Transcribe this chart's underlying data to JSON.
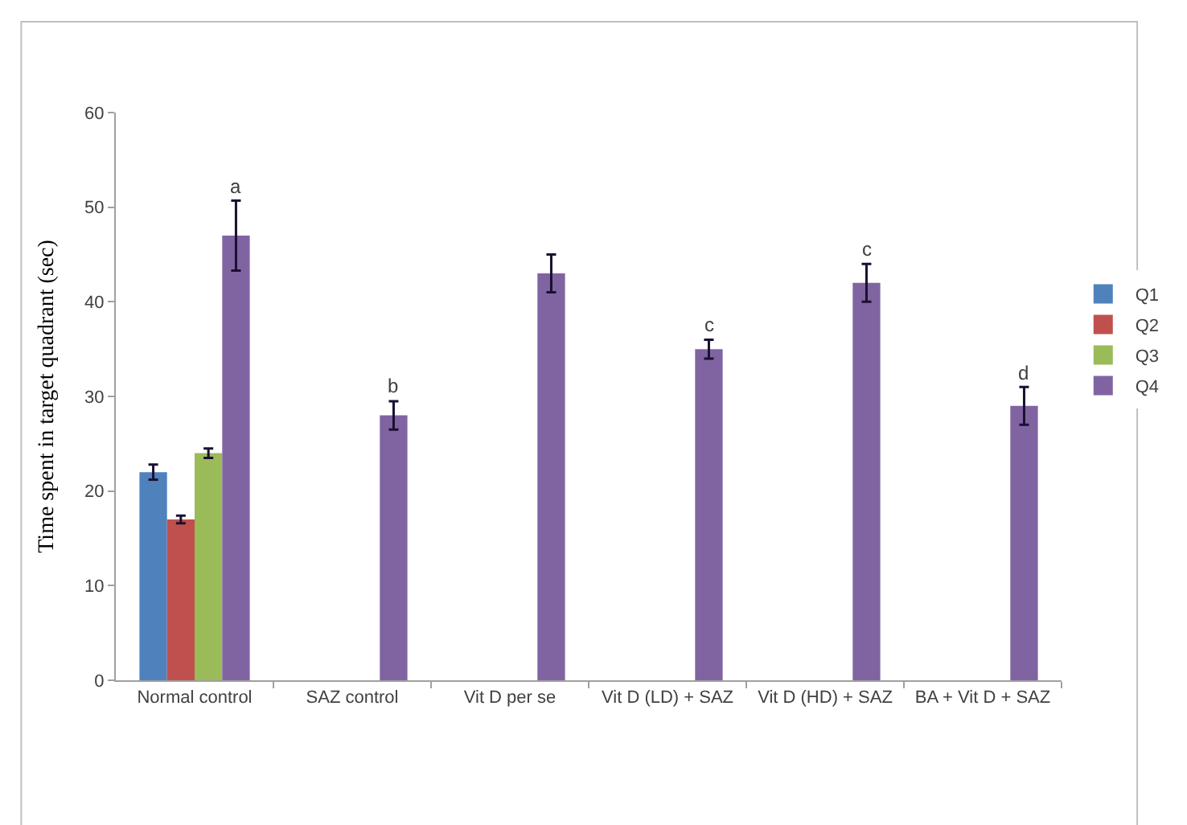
{
  "chart_data": {
    "type": "bar",
    "ylabel": "Time spent in target quadrant (sec)",
    "categories": [
      "Normal control",
      "SAZ control",
      "Vit D per se",
      "Vit D (LD) + SAZ",
      "Vit D (HD) + SAZ",
      "BA + Vit D + SAZ"
    ],
    "series": [
      {
        "name": "Q1",
        "color": "#4f81bd",
        "values": [
          22,
          null,
          null,
          null,
          null,
          null
        ],
        "errors": [
          0.8,
          null,
          null,
          null,
          null,
          null
        ]
      },
      {
        "name": "Q2",
        "color": "#c0504d",
        "values": [
          17,
          null,
          null,
          null,
          null,
          null
        ],
        "errors": [
          0.4,
          null,
          null,
          null,
          null,
          null
        ]
      },
      {
        "name": "Q3",
        "color": "#9bbb59",
        "values": [
          24,
          null,
          null,
          null,
          null,
          null
        ],
        "errors": [
          0.5,
          null,
          null,
          null,
          null,
          null
        ]
      },
      {
        "name": "Q4",
        "color": "#8064a2",
        "values": [
          47,
          28,
          43,
          35,
          42,
          29
        ],
        "errors": [
          3.7,
          1.5,
          2,
          1,
          2,
          2
        ],
        "value_labels": [
          "a",
          "b",
          null,
          "c",
          "c",
          "d"
        ]
      }
    ],
    "ylim": [
      0,
      60
    ],
    "yticks": [
      0,
      10,
      20,
      30,
      40,
      50,
      60
    ],
    "legend": "right"
  }
}
